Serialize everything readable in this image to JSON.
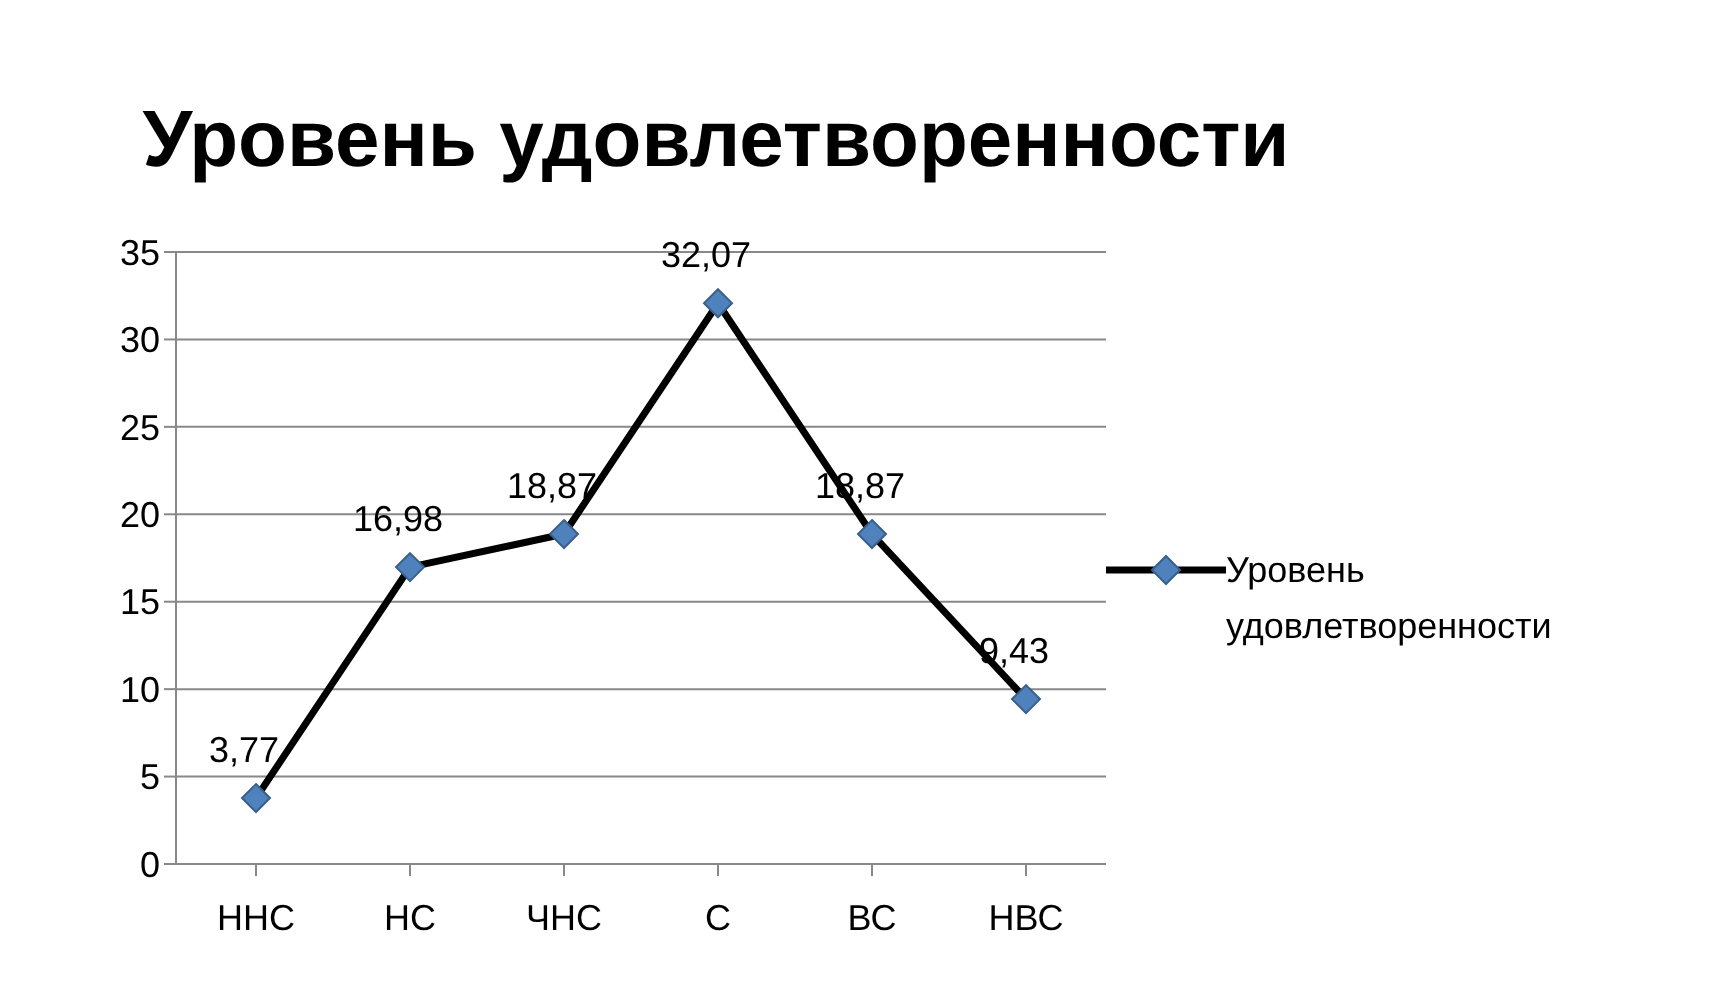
{
  "chart_data": {
    "type": "line",
    "title": "Уровень удовлетворенности",
    "categories": [
      "ННС",
      "НС",
      "ЧНС",
      "С",
      "ВС",
      "НВС"
    ],
    "series": [
      {
        "name": "Уровень удовлетворенности",
        "color": "#000000",
        "values": [
          3.77,
          16.98,
          18.87,
          32.07,
          18.87,
          9.43
        ],
        "value_labels": [
          "3,77",
          "16,98",
          "18,87",
          "32,07",
          "18,87",
          "9,43"
        ]
      }
    ],
    "ylim": [
      0,
      35
    ],
    "yticks": [
      0,
      5,
      10,
      15,
      20,
      25,
      30,
      35
    ],
    "grid": "y",
    "legend": "right",
    "marker": "diamond",
    "line_style": "solid"
  }
}
